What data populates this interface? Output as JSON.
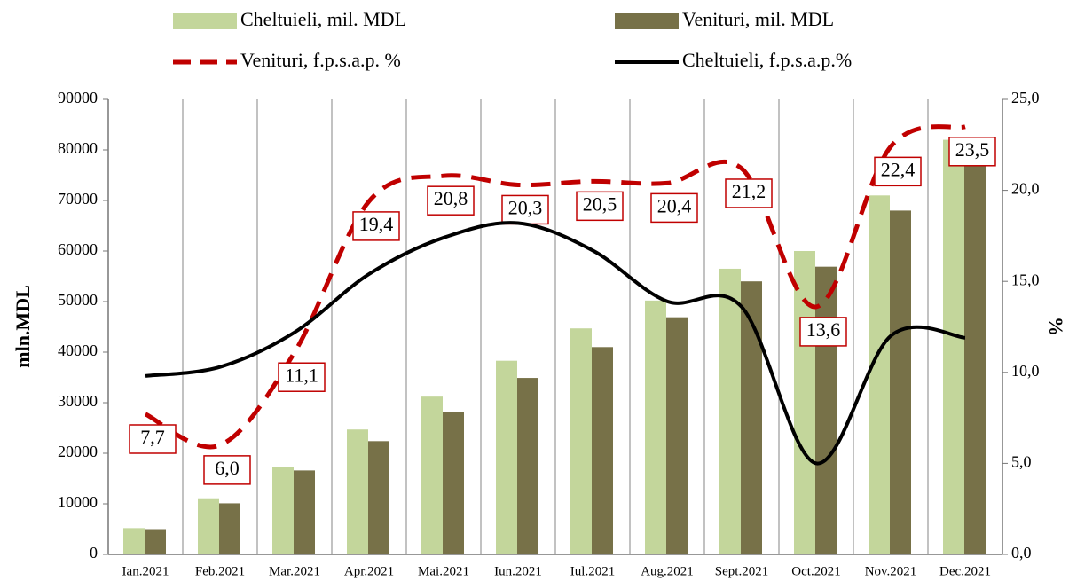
{
  "chart_data": {
    "type": "bar",
    "categories": [
      "Ian.2021",
      "Feb.2021",
      "Mar.2021",
      "Apr.2021",
      "Mai.2021",
      "Iun.2021",
      "Iul.2021",
      "Aug.2021",
      "Sept.2021",
      "Oct.2021",
      "Nov.2021",
      "Dec.2021"
    ],
    "series": [
      {
        "name": "Cheltuieli, mil. MDL",
        "type": "bar",
        "color": "#c3d69b",
        "values": [
          5200,
          11100,
          17300,
          24700,
          31200,
          38300,
          44700,
          50200,
          56500,
          60000,
          71000,
          82000
        ]
      },
      {
        "name": "Venituri, mil. MDL",
        "type": "bar",
        "color": "#777148",
        "values": [
          5000,
          10100,
          16600,
          22400,
          28100,
          34900,
          41000,
          46900,
          54000,
          56900,
          68000,
          77400
        ]
      },
      {
        "name": "Venituri, f.p.s.a.p. %",
        "type": "line",
        "style": "dashed",
        "axis": "y2",
        "color": "#c00000",
        "values": [
          7.7,
          6.0,
          11.1,
          19.4,
          20.8,
          20.3,
          20.5,
          20.4,
          21.2,
          13.6,
          22.4,
          23.5
        ],
        "value_labels": [
          "7,7",
          "6,0",
          "11,1",
          "19,4",
          "20,8",
          "20,3",
          "20,5",
          "20,4",
          "21,2",
          "13,6",
          "22,4",
          "23,5"
        ]
      },
      {
        "name": "Cheltuieli, f.p.s.a.p.%",
        "type": "line",
        "style": "solid",
        "axis": "y2",
        "color": "#000000",
        "values": [
          9.8,
          10.3,
          12.2,
          15.4,
          17.4,
          18.2,
          16.7,
          13.9,
          13.6,
          5.0,
          12.0,
          11.9
        ]
      }
    ],
    "ylabel": "mln.MDL",
    "y2label": "%",
    "ylim": [
      0,
      90000
    ],
    "yticks": [
      0,
      10000,
      20000,
      30000,
      40000,
      50000,
      60000,
      70000,
      80000,
      90000
    ],
    "y2lim": [
      0,
      25
    ],
    "y2ticks": [
      {
        "value": 0,
        "label": "0,0"
      },
      {
        "value": 5,
        "label": "5,0"
      },
      {
        "value": 10,
        "label": "10,0"
      },
      {
        "value": 15,
        "label": "15,0"
      },
      {
        "value": 20,
        "label": "20,0"
      },
      {
        "value": 25,
        "label": "25,0"
      }
    ],
    "grid": "vertical",
    "legend": "top"
  }
}
